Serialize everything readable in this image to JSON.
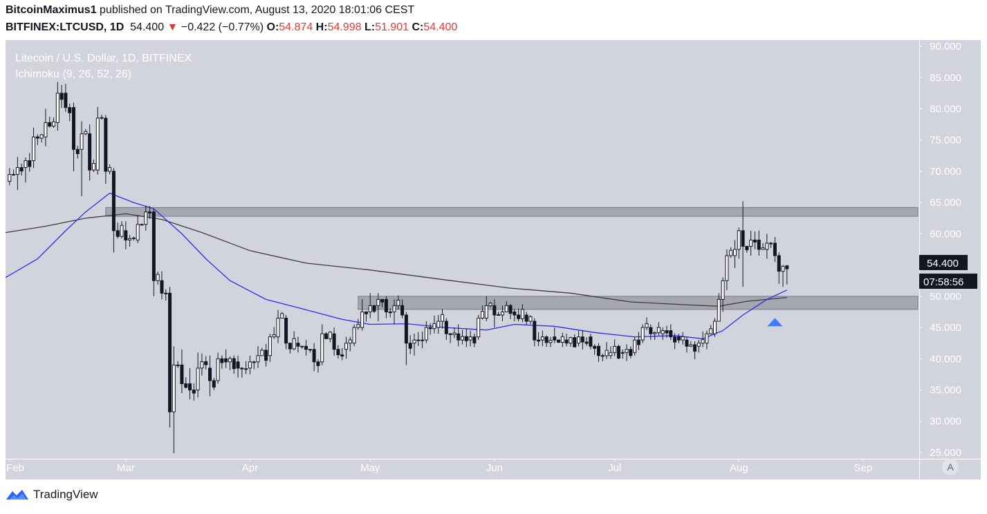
{
  "header": {
    "author": "BitcoinMaximus1",
    "published_text": "published on TradingView.com, August 13, 2020 18:01:06 CEST",
    "symbol": "BITFINEX:LTCUSD, 1D",
    "last": "54.400",
    "change_arrow": "▼",
    "change": "−0.422 (−0.77%)",
    "o_label": "O:",
    "o_value": "54.874",
    "h_label": "H:",
    "h_value": "54.998",
    "l_label": "L:",
    "l_value": "51.901",
    "c_label": "C:",
    "c_value": "54.400"
  },
  "legend": {
    "title": "Litecoin / U.S. Dollar, 1D, BITFINEX",
    "indicator": "Ichimoku (9, 26, 52, 26)"
  },
  "price_tag": {
    "price": "54.400",
    "countdown": "07:58:56"
  },
  "scale_button": "A",
  "footer": {
    "brand": "TradingView",
    "logo_icon": "tradingview-logo-icon"
  },
  "colors": {
    "background": "#d1d4dc",
    "up_candle": "#ffffff",
    "down_candle": "#131722",
    "ma_fast": "#2b2bf5",
    "ma_slow": "#3b3b3b",
    "zone": "#9598a1",
    "arrow": "#3d7dff",
    "down_text": "#e53935"
  },
  "chart_data": {
    "type": "candlestick",
    "title": "Litecoin / U.S. Dollar, 1D, BITFINEX",
    "y_axis": {
      "ticks": [
        "90.000",
        "85.000",
        "80.000",
        "75.000",
        "70.000",
        "65.000",
        "60.000",
        "55.000",
        "50.000",
        "45.000",
        "40.000",
        "35.000",
        "30.000",
        "25.000"
      ],
      "range": [
        24,
        91
      ]
    },
    "x_axis": {
      "ticks": [
        "Feb",
        "Mar",
        "Apr",
        "May",
        "Jun",
        "Jul",
        "Aug",
        "Sep"
      ],
      "range": [
        "2020-01-31",
        "2020-09-15"
      ]
    },
    "ohlc_anchors": [
      [
        "2020-02-01",
        68.4,
        70.5,
        67.8,
        69.5
      ],
      [
        "2020-02-03",
        69.5,
        72.3,
        67.0,
        70.6
      ],
      [
        "2020-02-05",
        70.6,
        72.2,
        68.2,
        71.7
      ],
      [
        "2020-02-07",
        71.7,
        77.0,
        70.5,
        75.5
      ],
      [
        "2020-02-10",
        75.5,
        80.0,
        74.0,
        77.8
      ],
      [
        "2020-02-13",
        77.8,
        84.3,
        76.5,
        82.5
      ],
      [
        "2020-02-15",
        82.5,
        84.0,
        79.5,
        80.2
      ],
      [
        "2020-02-17",
        80.2,
        81.0,
        70.0,
        73.5
      ],
      [
        "2020-02-19",
        73.5,
        78.0,
        66.0,
        76.0
      ],
      [
        "2020-02-21",
        76.0,
        77.5,
        68.5,
        70.2
      ],
      [
        "2020-02-23",
        70.2,
        80.3,
        69.5,
        78.5
      ],
      [
        "2020-02-25",
        78.5,
        79.0,
        68.0,
        70.0
      ],
      [
        "2020-02-27",
        70.0,
        70.5,
        57.0,
        60.5
      ],
      [
        "2020-03-01",
        60.5,
        62.0,
        57.5,
        59.0
      ],
      [
        "2020-03-04",
        59.0,
        63.0,
        58.5,
        61.5
      ],
      [
        "2020-03-06",
        61.5,
        64.5,
        60.5,
        63.5
      ],
      [
        "2020-03-08",
        63.5,
        64.0,
        50.0,
        52.5
      ],
      [
        "2020-03-10",
        52.5,
        54.0,
        49.5,
        50.5
      ],
      [
        "2020-03-12",
        50.5,
        51.5,
        29.0,
        31.5
      ],
      [
        "2020-03-13",
        31.5,
        42.0,
        24.9,
        39.0
      ],
      [
        "2020-03-15",
        39.0,
        41.5,
        34.5,
        36.0
      ],
      [
        "2020-03-17",
        36.0,
        38.5,
        33.5,
        35.0
      ],
      [
        "2020-03-19",
        35.0,
        41.0,
        33.8,
        38.5
      ],
      [
        "2020-03-22",
        38.5,
        40.5,
        34.0,
        36.5
      ],
      [
        "2020-03-24",
        36.5,
        41.0,
        36.0,
        40.0
      ],
      [
        "2020-03-26",
        40.0,
        41.5,
        38.5,
        39.5
      ],
      [
        "2020-03-29",
        39.5,
        40.5,
        37.0,
        38.5
      ],
      [
        "2020-04-01",
        38.5,
        40.5,
        37.5,
        39.5
      ],
      [
        "2020-04-03",
        39.5,
        42.0,
        38.5,
        40.5
      ],
      [
        "2020-04-06",
        40.5,
        44.0,
        39.5,
        43.5
      ],
      [
        "2020-04-08",
        43.5,
        47.8,
        42.5,
        46.5
      ],
      [
        "2020-04-10",
        46.5,
        47.0,
        41.5,
        42.5
      ],
      [
        "2020-04-13",
        42.5,
        43.5,
        41.0,
        42.0
      ],
      [
        "2020-04-15",
        42.0,
        43.0,
        40.5,
        41.5
      ],
      [
        "2020-04-17",
        41.5,
        42.5,
        38.0,
        39.5
      ],
      [
        "2020-04-19",
        39.5,
        45.5,
        39.0,
        44.0
      ],
      [
        "2020-04-22",
        44.0,
        45.0,
        40.5,
        41.5
      ],
      [
        "2020-04-25",
        41.5,
        43.5,
        40.0,
        42.5
      ],
      [
        "2020-04-27",
        42.5,
        45.5,
        42.0,
        45.0
      ],
      [
        "2020-04-29",
        45.0,
        49.5,
        44.5,
        47.5
      ],
      [
        "2020-05-01",
        47.5,
        50.5,
        46.5,
        48.5
      ],
      [
        "2020-05-03",
        48.5,
        50.5,
        46.0,
        49.5
      ],
      [
        "2020-05-05",
        49.5,
        50.0,
        46.5,
        47.5
      ],
      [
        "2020-05-07",
        47.5,
        49.5,
        45.5,
        48.5
      ],
      [
        "2020-05-09",
        48.5,
        49.5,
        46.5,
        47.0
      ],
      [
        "2020-05-10",
        47.0,
        47.5,
        39.0,
        42.5
      ],
      [
        "2020-05-12",
        42.5,
        44.0,
        40.5,
        43.0
      ],
      [
        "2020-05-15",
        43.0,
        46.0,
        42.5,
        45.0
      ],
      [
        "2020-05-18",
        45.0,
        47.0,
        44.0,
        46.0
      ],
      [
        "2020-05-20",
        46.0,
        46.5,
        43.0,
        44.0
      ],
      [
        "2020-05-23",
        44.0,
        45.5,
        42.0,
        43.0
      ],
      [
        "2020-05-26",
        43.0,
        44.5,
        42.0,
        43.5
      ],
      [
        "2020-05-28",
        43.5,
        47.0,
        43.0,
        46.5
      ],
      [
        "2020-05-30",
        46.5,
        50.0,
        46.0,
        48.5
      ],
      [
        "2020-06-01",
        48.5,
        49.5,
        45.0,
        47.0
      ],
      [
        "2020-06-03",
        47.0,
        48.5,
        46.0,
        47.5
      ],
      [
        "2020-06-06",
        47.5,
        48.0,
        46.0,
        47.0
      ],
      [
        "2020-06-09",
        47.0,
        47.5,
        45.5,
        46.0
      ],
      [
        "2020-06-11",
        46.0,
        46.5,
        42.0,
        43.0
      ],
      [
        "2020-06-13",
        43.0,
        44.5,
        42.0,
        43.5
      ],
      [
        "2020-06-16",
        43.5,
        45.0,
        42.5,
        43.0
      ],
      [
        "2020-06-19",
        43.0,
        44.0,
        42.0,
        42.5
      ],
      [
        "2020-06-22",
        42.5,
        44.5,
        42.0,
        43.5
      ],
      [
        "2020-06-25",
        43.5,
        44.0,
        41.5,
        42.0
      ],
      [
        "2020-06-27",
        42.0,
        42.5,
        39.5,
        40.5
      ],
      [
        "2020-06-30",
        40.5,
        42.0,
        40.0,
        41.0
      ],
      [
        "2020-07-03",
        41.0,
        41.5,
        40.0,
        41.0
      ],
      [
        "2020-07-06",
        41.0,
        43.5,
        40.5,
        43.0
      ],
      [
        "2020-07-08",
        43.0,
        45.5,
        42.5,
        45.0
      ],
      [
        "2020-07-10",
        45.0,
        45.5,
        43.0,
        44.0
      ],
      [
        "2020-07-13",
        44.0,
        45.0,
        43.0,
        44.5
      ],
      [
        "2020-07-15",
        44.5,
        45.5,
        43.0,
        43.5
      ],
      [
        "2020-07-17",
        43.5,
        44.0,
        42.5,
        43.0
      ],
      [
        "2020-07-19",
        43.0,
        43.5,
        41.0,
        42.0
      ],
      [
        "2020-07-22",
        42.0,
        43.0,
        41.0,
        42.5
      ],
      [
        "2020-07-24",
        42.5,
        44.5,
        41.5,
        44.0
      ],
      [
        "2020-07-26",
        44.0,
        46.5,
        43.5,
        46.0
      ],
      [
        "2020-07-27",
        46.0,
        50.5,
        46.0,
        49.5
      ],
      [
        "2020-07-28",
        49.5,
        53.0,
        47.5,
        52.5
      ],
      [
        "2020-07-29",
        52.5,
        57.5,
        51.0,
        56.5
      ],
      [
        "2020-07-31",
        56.5,
        59.0,
        54.5,
        57.5
      ],
      [
        "2020-08-01",
        57.5,
        61.0,
        56.0,
        60.5
      ],
      [
        "2020-08-02",
        60.5,
        65.2,
        51.5,
        58.0
      ],
      [
        "2020-08-04",
        58.0,
        60.5,
        56.5,
        59.0
      ],
      [
        "2020-08-06",
        59.0,
        60.5,
        56.5,
        57.5
      ],
      [
        "2020-08-08",
        57.5,
        60.0,
        56.0,
        58.5
      ],
      [
        "2020-08-10",
        58.5,
        59.5,
        55.5,
        56.5
      ],
      [
        "2020-08-11",
        56.5,
        57.0,
        52.0,
        54.0
      ],
      [
        "2020-08-12",
        54.0,
        55.0,
        51.5,
        54.8
      ],
      [
        "2020-08-13",
        54.874,
        54.998,
        51.901,
        54.4
      ]
    ],
    "ma_fast": {
      "color": "#2b2bf5",
      "points": [
        [
          "2020-01-31",
          53
        ],
        [
          "2020-02-08",
          56
        ],
        [
          "2020-02-15",
          60.5
        ],
        [
          "2020-02-20",
          63.5
        ],
        [
          "2020-02-26",
          66.5
        ],
        [
          "2020-03-03",
          65
        ],
        [
          "2020-03-08",
          64
        ],
        [
          "2020-03-15",
          60
        ],
        [
          "2020-03-21",
          56
        ],
        [
          "2020-03-27",
          52.5
        ],
        [
          "2020-04-05",
          49.5
        ],
        [
          "2020-04-14",
          48
        ],
        [
          "2020-04-24",
          46.3
        ],
        [
          "2020-05-01",
          45.5
        ],
        [
          "2020-05-10",
          45.6
        ],
        [
          "2020-05-20",
          45
        ],
        [
          "2020-05-30",
          44.6
        ],
        [
          "2020-06-06",
          45.5
        ],
        [
          "2020-06-16",
          45.2
        ],
        [
          "2020-06-26",
          44.2
        ],
        [
          "2020-07-06",
          43.5
        ],
        [
          "2020-07-16",
          43.7
        ],
        [
          "2020-07-23",
          43.2
        ],
        [
          "2020-07-28",
          44.5
        ],
        [
          "2020-08-02",
          47
        ],
        [
          "2020-08-08",
          49.5
        ],
        [
          "2020-08-13",
          51
        ]
      ]
    },
    "ma_slow": {
      "color": "#3b3b3b",
      "points": [
        [
          "2020-01-31",
          60.2
        ],
        [
          "2020-02-10",
          61.2
        ],
        [
          "2020-02-20",
          62.5
        ],
        [
          "2020-03-01",
          63.2
        ],
        [
          "2020-03-10",
          62.3
        ],
        [
          "2020-03-20",
          60.2
        ],
        [
          "2020-04-01",
          57.3
        ],
        [
          "2020-04-15",
          55.3
        ],
        [
          "2020-05-01",
          54.2
        ],
        [
          "2020-05-20",
          52.6
        ],
        [
          "2020-06-05",
          51.3
        ],
        [
          "2020-06-20",
          50.5
        ],
        [
          "2020-07-05",
          49.1
        ],
        [
          "2020-07-20",
          48.6
        ],
        [
          "2020-07-27",
          48.4
        ],
        [
          "2020-08-03",
          49.2
        ],
        [
          "2020-08-13",
          49.8
        ]
      ]
    },
    "zones": [
      {
        "from": "2020-02-25",
        "to": "2020-09-16",
        "low": 62.8,
        "high": 64.2
      },
      {
        "from": "2020-04-28",
        "to": "2020-09-15",
        "low": 47.9,
        "high": 50.0
      }
    ],
    "marker": {
      "type": "arrow-up",
      "date": "2020-08-10",
      "value": 46.2,
      "color": "#3d7dff"
    }
  }
}
